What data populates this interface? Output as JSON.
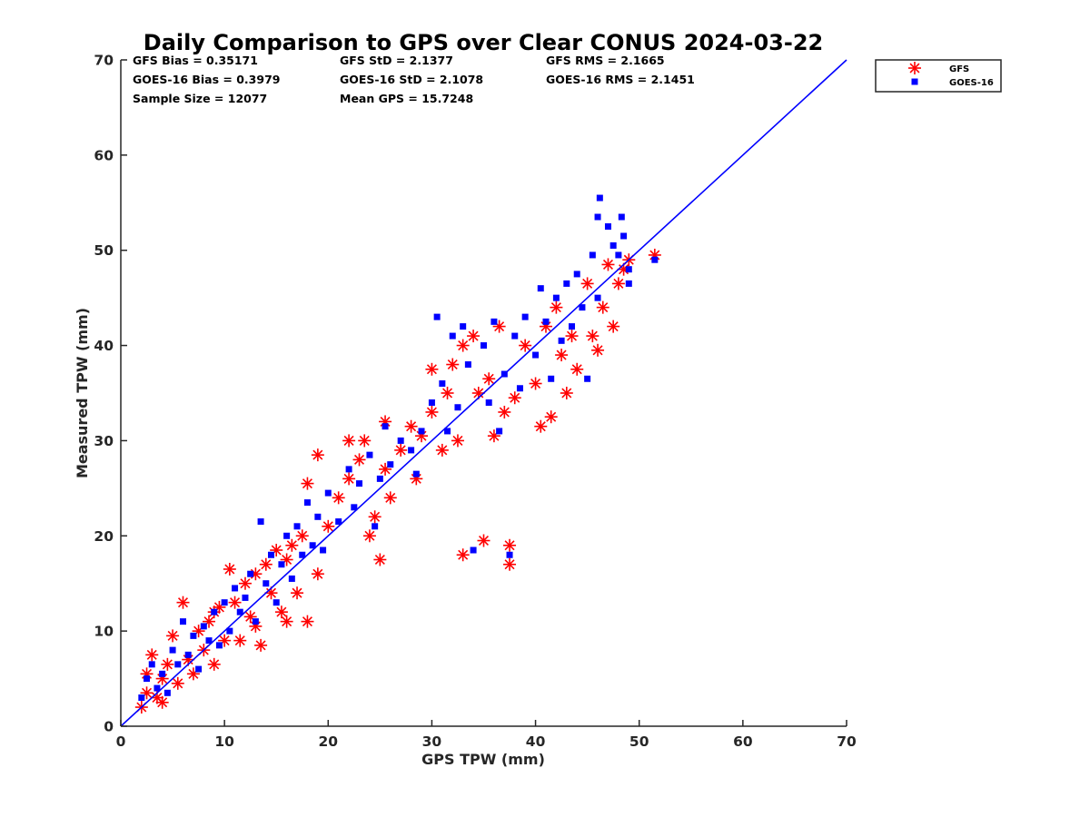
{
  "chart_data": {
    "type": "scatter",
    "title": "Daily Comparison to GPS over Clear CONUS 2024-03-22",
    "xlabel": "GPS TPW (mm)",
    "ylabel": "Measured TPW (mm)",
    "xlim": [
      0,
      70
    ],
    "ylim": [
      0,
      70
    ],
    "xticks": [
      "0",
      "10",
      "20",
      "30",
      "40",
      "50",
      "60",
      "70"
    ],
    "yticks": [
      "0",
      "10",
      "20",
      "30",
      "40",
      "50",
      "60",
      "70"
    ],
    "grid": false,
    "legend_position": "outside-top-right",
    "stats": {
      "gfs_bias": "GFS Bias = 0.35171",
      "goes_bias": "GOES-16 Bias = 0.3979",
      "sample_size": "Sample Size = 12077",
      "gfs_std": "GFS StD = 2.1377",
      "goes_std": "GOES-16 StD = 2.1078",
      "mean_gps": "Mean GPS = 15.7248",
      "gfs_rms": "GFS RMS = 2.1665",
      "goes_rms": "GOES-16 RMS = 2.1451"
    },
    "reference_line": {
      "name": "1:1 line",
      "x": [
        0,
        70
      ],
      "y": [
        0,
        70
      ],
      "color": "#0000ff"
    },
    "series": [
      {
        "name": "GFS",
        "marker": "asterisk",
        "color": "#ff0000",
        "points": [
          [
            2,
            2
          ],
          [
            2.5,
            3.5
          ],
          [
            3,
            7.5
          ],
          [
            3.5,
            3
          ],
          [
            4,
            5
          ],
          [
            4.5,
            6.5
          ],
          [
            5,
            9.5
          ],
          [
            5.5,
            4.5
          ],
          [
            6,
            13
          ],
          [
            6.5,
            7
          ],
          [
            7,
            5.5
          ],
          [
            7.5,
            10
          ],
          [
            8,
            8
          ],
          [
            8.5,
            11
          ],
          [
            9,
            6.5
          ],
          [
            9.5,
            12.5
          ],
          [
            10,
            9
          ],
          [
            10.5,
            16.5
          ],
          [
            11,
            13
          ],
          [
            11.5,
            9
          ],
          [
            12,
            15
          ],
          [
            12.5,
            11.5
          ],
          [
            13,
            16
          ],
          [
            13.5,
            8.5
          ],
          [
            14,
            17
          ],
          [
            14.5,
            14
          ],
          [
            15,
            18.5
          ],
          [
            15.5,
            12
          ],
          [
            16,
            11
          ],
          [
            16.5,
            19
          ],
          [
            17,
            14
          ],
          [
            17.5,
            20
          ],
          [
            18,
            11
          ],
          [
            18,
            25.5
          ],
          [
            19,
            28.5
          ],
          [
            19,
            16
          ],
          [
            20,
            21
          ],
          [
            21,
            24
          ],
          [
            22,
            30
          ],
          [
            22,
            26
          ],
          [
            23,
            28
          ],
          [
            23.5,
            30
          ],
          [
            24,
            20
          ],
          [
            24.5,
            22
          ],
          [
            25,
            17.5
          ],
          [
            25.5,
            27
          ],
          [
            25.5,
            32
          ],
          [
            26,
            24
          ],
          [
            27,
            29
          ],
          [
            28,
            31.5
          ],
          [
            28.5,
            26
          ],
          [
            29,
            30.5
          ],
          [
            30,
            33
          ],
          [
            30,
            37.5
          ],
          [
            31,
            29
          ],
          [
            31.5,
            35
          ],
          [
            32,
            38
          ],
          [
            32.5,
            30
          ],
          [
            33,
            40
          ],
          [
            33,
            18
          ],
          [
            34,
            41
          ],
          [
            34.5,
            35
          ],
          [
            35,
            19.5
          ],
          [
            35.5,
            36.5
          ],
          [
            36,
            30.5
          ],
          [
            36.5,
            42
          ],
          [
            37,
            33
          ],
          [
            37.5,
            17
          ],
          [
            37.5,
            19
          ],
          [
            38,
            34.5
          ],
          [
            39,
            40
          ],
          [
            40,
            36
          ],
          [
            40.5,
            31.5
          ],
          [
            41,
            42
          ],
          [
            41.5,
            32.5
          ],
          [
            42,
            44
          ],
          [
            42.5,
            39
          ],
          [
            43,
            35
          ],
          [
            43.5,
            41
          ],
          [
            44,
            37.5
          ],
          [
            45,
            46.5
          ],
          [
            45.5,
            41
          ],
          [
            46,
            39.5
          ],
          [
            46.5,
            44
          ],
          [
            47,
            48.5
          ],
          [
            47.5,
            42
          ],
          [
            48,
            46.5
          ],
          [
            48.5,
            48
          ],
          [
            49,
            49
          ],
          [
            51.5,
            49.5
          ],
          [
            13,
            10.5
          ],
          [
            16,
            17.5
          ],
          [
            9,
            12
          ],
          [
            4,
            2.5
          ],
          [
            2.5,
            5.5
          ]
        ]
      },
      {
        "name": "GOES-16",
        "marker": "square",
        "color": "#0000ff",
        "points": [
          [
            2,
            3
          ],
          [
            2.5,
            5
          ],
          [
            3,
            6.5
          ],
          [
            3.5,
            4
          ],
          [
            4,
            5.5
          ],
          [
            4.5,
            3.5
          ],
          [
            5,
            8
          ],
          [
            5.5,
            6.5
          ],
          [
            6,
            11
          ],
          [
            6.5,
            7.5
          ],
          [
            7,
            9.5
          ],
          [
            7.5,
            6
          ],
          [
            8,
            10.5
          ],
          [
            8.5,
            9
          ],
          [
            9,
            12
          ],
          [
            9.5,
            8.5
          ],
          [
            10,
            13
          ],
          [
            10.5,
            10
          ],
          [
            11,
            14.5
          ],
          [
            11.5,
            12
          ],
          [
            12,
            13.5
          ],
          [
            12.5,
            16
          ],
          [
            13,
            11
          ],
          [
            13.5,
            21.5
          ],
          [
            14,
            15
          ],
          [
            14.5,
            18
          ],
          [
            15,
            13
          ],
          [
            15.5,
            17
          ],
          [
            16,
            20
          ],
          [
            16.5,
            15.5
          ],
          [
            17,
            21
          ],
          [
            17.5,
            18
          ],
          [
            18,
            23.5
          ],
          [
            18.5,
            19
          ],
          [
            19,
            22
          ],
          [
            19.5,
            18.5
          ],
          [
            20,
            24.5
          ],
          [
            21,
            21.5
          ],
          [
            22,
            27
          ],
          [
            22.5,
            23
          ],
          [
            23,
            25.5
          ],
          [
            24,
            28.5
          ],
          [
            24.5,
            21
          ],
          [
            25,
            26
          ],
          [
            25.5,
            31.5
          ],
          [
            26,
            27.5
          ],
          [
            27,
            30
          ],
          [
            28,
            29
          ],
          [
            28.5,
            26.5
          ],
          [
            29,
            31
          ],
          [
            30,
            34
          ],
          [
            30.5,
            43
          ],
          [
            31,
            36
          ],
          [
            31.5,
            31
          ],
          [
            32,
            41
          ],
          [
            32.5,
            33.5
          ],
          [
            33,
            42
          ],
          [
            33.5,
            38
          ],
          [
            34,
            18.5
          ],
          [
            35,
            40
          ],
          [
            35.5,
            34
          ],
          [
            36,
            42.5
          ],
          [
            36.5,
            31
          ],
          [
            37,
            37
          ],
          [
            37.5,
            18
          ],
          [
            38,
            41
          ],
          [
            38.5,
            35.5
          ],
          [
            39,
            43
          ],
          [
            40,
            39
          ],
          [
            40.5,
            46
          ],
          [
            41,
            42.5
          ],
          [
            41.5,
            36.5
          ],
          [
            42,
            45
          ],
          [
            42.5,
            40.5
          ],
          [
            43,
            46.5
          ],
          [
            43.5,
            42
          ],
          [
            44,
            47.5
          ],
          [
            44.5,
            44
          ],
          [
            45,
            36.5
          ],
          [
            45.5,
            49.5
          ],
          [
            46,
            45
          ],
          [
            46.2,
            55.5
          ],
          [
            46,
            53.5
          ],
          [
            47,
            52.5
          ],
          [
            47.5,
            50.5
          ],
          [
            48,
            49.5
          ],
          [
            48.3,
            53.5
          ],
          [
            48.5,
            51.5
          ],
          [
            49,
            48
          ],
          [
            49,
            46.5
          ],
          [
            51.5,
            49
          ]
        ]
      }
    ]
  },
  "legend": {
    "items": [
      {
        "label": "GFS",
        "color": "#ff0000"
      },
      {
        "label": "GOES-16",
        "color": "#0000ff"
      }
    ]
  }
}
